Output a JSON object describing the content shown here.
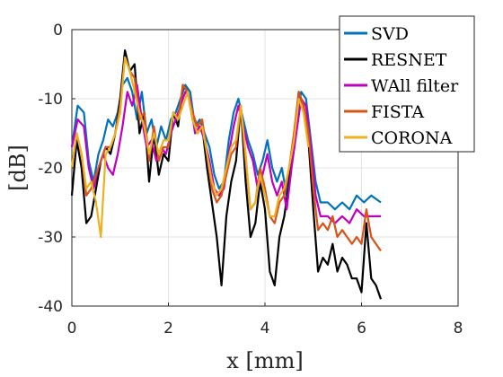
{
  "chart_data": {
    "type": "line",
    "title": "",
    "xlabel": "x [mm]",
    "ylabel": "[dB]",
    "xlim": [
      0,
      8
    ],
    "ylim": [
      -40,
      0
    ],
    "xticks": [
      0,
      2,
      4,
      6,
      8
    ],
    "yticks": [
      0,
      -10,
      -20,
      -30,
      -40
    ],
    "grid": true,
    "legend_position": "top-right",
    "series": [
      {
        "name": "SVD",
        "color": "#0072bd",
        "x": [
          0,
          0.12,
          0.25,
          0.35,
          0.45,
          0.55,
          0.65,
          0.75,
          0.85,
          0.95,
          1.05,
          1.15,
          1.25,
          1.35,
          1.45,
          1.55,
          1.65,
          1.75,
          1.85,
          1.95,
          2.05,
          2.15,
          2.25,
          2.35,
          2.45,
          2.55,
          2.65,
          2.75,
          2.85,
          2.95,
          3.05,
          3.15,
          3.25,
          3.35,
          3.45,
          3.55,
          3.65,
          3.75,
          3.85,
          3.95,
          4.05,
          4.15,
          4.25,
          4.35,
          4.45,
          4.55,
          4.65,
          4.75,
          4.85,
          4.95,
          5.05,
          5.15,
          5.3,
          5.45,
          5.6,
          5.75,
          5.9,
          6.05,
          6.2,
          6.4
        ],
        "values": [
          -17,
          -11,
          -12,
          -19,
          -22,
          -18,
          -16,
          -13,
          -14,
          -12,
          -8,
          -7,
          -9,
          -13,
          -9,
          -15,
          -13,
          -17,
          -14,
          -16,
          -13,
          -12,
          -10,
          -8,
          -9,
          -14,
          -13,
          -15,
          -17,
          -21,
          -23,
          -22,
          -16,
          -12,
          -10,
          -13,
          -16,
          -18,
          -21,
          -19,
          -16,
          -20,
          -22,
          -20,
          -24,
          -18,
          -13,
          -9,
          -10,
          -16,
          -22,
          -25,
          -25,
          -26,
          -25,
          -26,
          -24,
          -25,
          -24,
          -25
        ]
      },
      {
        "name": "RESNET",
        "color": "#000000",
        "x": [
          0,
          0.1,
          0.2,
          0.3,
          0.4,
          0.5,
          0.6,
          0.7,
          0.8,
          0.9,
          1.0,
          1.1,
          1.2,
          1.3,
          1.4,
          1.5,
          1.6,
          1.7,
          1.8,
          1.9,
          2.0,
          2.1,
          2.2,
          2.3,
          2.4,
          2.5,
          2.6,
          2.7,
          2.8,
          2.9,
          3.0,
          3.1,
          3.2,
          3.3,
          3.4,
          3.5,
          3.6,
          3.7,
          3.8,
          3.9,
          4.0,
          4.1,
          4.2,
          4.3,
          4.4,
          4.5,
          4.6,
          4.7,
          4.8,
          4.9,
          5.0,
          5.1,
          5.2,
          5.3,
          5.4,
          5.5,
          5.6,
          5.7,
          5.8,
          5.9,
          6.0,
          6.1,
          6.2,
          6.3,
          6.4
        ],
        "values": [
          -24,
          -16,
          -20,
          -28,
          -27,
          -23,
          -19,
          -17,
          -18,
          -15,
          -10,
          -3,
          -6,
          -5,
          -15,
          -12,
          -22,
          -15,
          -21,
          -18,
          -19,
          -12,
          -14,
          -8,
          -9,
          -13,
          -15,
          -14,
          -20,
          -25,
          -30,
          -37,
          -27,
          -22,
          -19,
          -11,
          -22,
          -30,
          -28,
          -22,
          -26,
          -35,
          -37,
          -30,
          -27,
          -22,
          -16,
          -9,
          -11,
          -16,
          -26,
          -35,
          -33,
          -34,
          -31,
          -35,
          -33,
          -34,
          -36,
          -36,
          -38,
          -28,
          -36,
          -37,
          -39
        ]
      },
      {
        "name": "WAll filter",
        "color": "#c000c0",
        "x": [
          0,
          0.12,
          0.25,
          0.35,
          0.45,
          0.55,
          0.65,
          0.75,
          0.85,
          0.95,
          1.05,
          1.15,
          1.25,
          1.35,
          1.45,
          1.55,
          1.65,
          1.75,
          1.85,
          1.95,
          2.05,
          2.15,
          2.25,
          2.35,
          2.45,
          2.55,
          2.65,
          2.75,
          2.85,
          2.95,
          3.05,
          3.15,
          3.25,
          3.35,
          3.45,
          3.55,
          3.65,
          3.75,
          3.85,
          3.95,
          4.05,
          4.15,
          4.25,
          4.35,
          4.45,
          4.55,
          4.65,
          4.75,
          4.85,
          4.95,
          5.05,
          5.15,
          5.3,
          5.45,
          5.6,
          5.75,
          5.9,
          6.05,
          6.2,
          6.4
        ],
        "values": [
          -17,
          -13,
          -14,
          -20,
          -23,
          -20,
          -18,
          -20,
          -21,
          -18,
          -14,
          -9,
          -11,
          -8,
          -13,
          -17,
          -16,
          -19,
          -17,
          -18,
          -15,
          -13,
          -11,
          -9,
          -10,
          -15,
          -14,
          -16,
          -19,
          -23,
          -24,
          -23,
          -18,
          -14,
          -11,
          -14,
          -17,
          -19,
          -23,
          -21,
          -18,
          -22,
          -24,
          -22,
          -26,
          -20,
          -15,
          -10,
          -11,
          -17,
          -24,
          -27,
          -27,
          -28,
          -27,
          -28,
          -26,
          -27,
          -27,
          -27
        ]
      },
      {
        "name": "FISTA",
        "color": "#d95319",
        "x": [
          0,
          0.1,
          0.2,
          0.3,
          0.4,
          0.5,
          0.6,
          0.7,
          0.8,
          0.9,
          1.0,
          1.1,
          1.2,
          1.3,
          1.4,
          1.5,
          1.6,
          1.7,
          1.8,
          1.9,
          2.0,
          2.1,
          2.2,
          2.3,
          2.4,
          2.5,
          2.6,
          2.7,
          2.8,
          2.9,
          3.0,
          3.1,
          3.2,
          3.3,
          3.4,
          3.5,
          3.6,
          3.7,
          3.8,
          3.9,
          4.0,
          4.1,
          4.2,
          4.3,
          4.4,
          4.5,
          4.6,
          4.7,
          4.8,
          4.9,
          5.0,
          5.1,
          5.2,
          5.3,
          5.4,
          5.5,
          5.6,
          5.7,
          5.8,
          5.9,
          6.0,
          6.1,
          6.2,
          6.3,
          6.4
        ],
        "values": [
          -20,
          -15,
          -18,
          -24,
          -23,
          -21,
          -19,
          -17,
          -17,
          -15,
          -11,
          -4,
          -6,
          -7,
          -13,
          -12,
          -19,
          -14,
          -19,
          -17,
          -17,
          -12,
          -13,
          -8,
          -9,
          -12,
          -14,
          -13,
          -18,
          -23,
          -25,
          -24,
          -21,
          -18,
          -17,
          -11,
          -19,
          -26,
          -25,
          -20,
          -23,
          -27,
          -28,
          -25,
          -24,
          -20,
          -15,
          -9,
          -11,
          -15,
          -23,
          -29,
          -28,
          -29,
          -27,
          -30,
          -29,
          -30,
          -31,
          -30,
          -31,
          -26,
          -30,
          -31,
          -32
        ]
      },
      {
        "name": "CORONA",
        "color": "#edb120",
        "x": [
          0,
          0.1,
          0.2,
          0.3,
          0.4,
          0.5,
          0.6,
          0.7,
          0.8,
          0.9,
          1.0,
          1.1,
          1.2,
          1.3,
          1.4,
          1.5,
          1.6,
          1.7,
          1.8,
          1.9,
          2.0,
          2.1,
          2.2,
          2.3,
          2.4,
          2.5,
          2.6,
          2.7,
          2.8,
          2.9,
          3.0,
          3.1,
          3.2,
          3.3,
          3.4,
          3.5,
          3.6,
          3.7,
          3.8,
          3.9,
          4.0,
          4.1,
          4.2,
          4.3,
          4.4,
          4.5,
          4.6,
          4.7,
          4.8,
          4.9
        ],
        "values": [
          -20,
          -15,
          -18,
          -23,
          -22,
          -25,
          -30,
          -18,
          -17,
          -15,
          -12,
          -4,
          -6,
          -9,
          -12,
          -14,
          -18,
          -15,
          -18,
          -16,
          -16,
          -12,
          -13,
          -11,
          -9,
          -13,
          -15,
          -14,
          -18,
          -22,
          -24,
          -23,
          -20,
          -17,
          -16,
          -11,
          -18,
          -26,
          -25,
          -21,
          -24,
          -27,
          -27,
          -24,
          -23,
          -20,
          -16,
          -10,
          -12,
          -17
        ]
      }
    ]
  }
}
